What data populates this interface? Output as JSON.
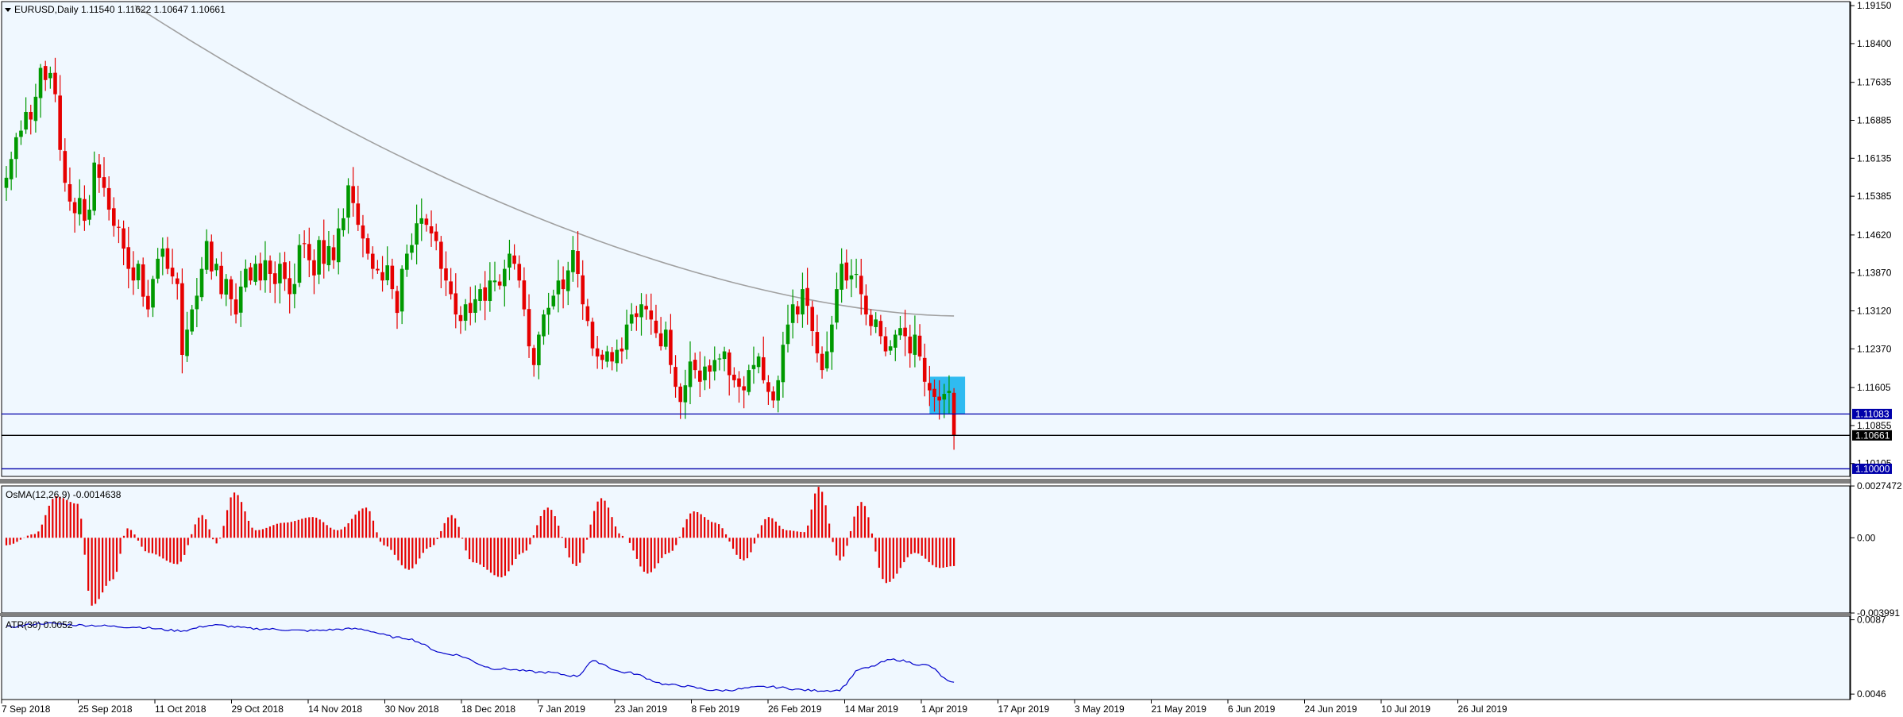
{
  "header": {
    "symbol_line": "EURUSD,Daily  1.11540 1.11622 1.10647 1.10661"
  },
  "colors": {
    "background": "#f0f8ff",
    "bull": "#009900",
    "bear": "#e60000",
    "ma": "#a0a0a0",
    "hline": "#0000aa",
    "highlight": "#1ab4f0",
    "osma": "#e60000",
    "atr": "#0000cc"
  },
  "chart_data": [
    {
      "type": "candlestick",
      "name": "EURUSD,Daily",
      "ylim": [
        1.0985,
        1.1923
      ],
      "y_ticks": [
        "1.19150",
        "1.18400",
        "1.17635",
        "1.16885",
        "1.16135",
        "1.15385",
        "1.14620",
        "1.13870",
        "1.13120",
        "1.12370",
        "1.11605",
        "1.10855",
        "1.10105"
      ],
      "x_ticks": [
        "7 Sep 2018",
        "25 Sep 2018",
        "11 Oct 2018",
        "29 Oct 2018",
        "14 Nov 2018",
        "30 Nov 2018",
        "18 Dec 2018",
        "7 Jan 2019",
        "23 Jan 2019",
        "8 Feb 2019",
        "26 Feb 2019",
        "14 Mar 2019",
        "1 Apr 2019",
        "17 Apr 2019",
        "3 May 2019",
        "21 May 2019",
        "6 Jun 2019",
        "24 Jun 2019",
        "10 Jul 2019",
        "26 Jul 2019"
      ],
      "close_path": [
        1.1575,
        1.1612,
        1.1655,
        1.1668,
        1.1705,
        1.169,
        1.1735,
        1.1792,
        1.1768,
        1.1782,
        1.174,
        1.163,
        1.1565,
        1.1528,
        1.1505,
        1.1535,
        1.149,
        1.1512,
        1.1605,
        1.1575,
        1.1555,
        1.1512,
        1.148,
        1.1478,
        1.1435,
        1.1395,
        1.1372,
        1.1405,
        1.134,
        1.1315,
        1.1375,
        1.1415,
        1.1435,
        1.1395,
        1.138,
        1.1365,
        1.1225,
        1.1275,
        1.1315,
        1.1342,
        1.1395,
        1.145,
        1.139,
        1.1405,
        1.1345,
        1.1375,
        1.1335,
        1.1305,
        1.136,
        1.1395,
        1.1372,
        1.1405,
        1.1372,
        1.1412,
        1.1385,
        1.1365,
        1.1405,
        1.1375,
        1.1345,
        1.1365,
        1.1442,
        1.1445,
        1.1412,
        1.1382,
        1.1452,
        1.1405,
        1.144,
        1.1412,
        1.1475,
        1.1495,
        1.156,
        1.1525,
        1.1482,
        1.1455,
        1.1425,
        1.1395,
        1.1392,
        1.1372,
        1.1402,
        1.1355,
        1.1308,
        1.1395,
        1.1425,
        1.1442,
        1.1485,
        1.1495,
        1.1482,
        1.1465,
        1.145,
        1.1395,
        1.1372,
        1.1345,
        1.1305,
        1.1292,
        1.1325,
        1.1308,
        1.1335,
        1.1355,
        1.1332,
        1.1372,
        1.1372,
        1.1362,
        1.1395,
        1.1425,
        1.1405,
        1.1372,
        1.1315,
        1.1242,
        1.1205,
        1.1265,
        1.1305,
        1.1318,
        1.1342,
        1.1372,
        1.1355,
        1.1392,
        1.1432,
        1.1385,
        1.1325,
        1.1292,
        1.1238,
        1.1222,
        1.1215,
        1.1232,
        1.1212,
        1.1235,
        1.1232,
        1.1285,
        1.1305,
        1.13,
        1.1325,
        1.1315,
        1.1295,
        1.1268,
        1.1242,
        1.1275,
        1.1205,
        1.1162,
        1.1132,
        1.1165,
        1.1212,
        1.1195,
        1.1172,
        1.1202,
        1.1192,
        1.1215,
        1.1218,
        1.1232,
        1.1185,
        1.1175,
        1.1162,
        1.1155,
        1.1195,
        1.1205,
        1.1222,
        1.1175,
        1.1152,
        1.1135,
        1.1175,
        1.1245,
        1.1285,
        1.1325,
        1.1305,
        1.1355,
        1.1322,
        1.1272,
        1.1228,
        1.1195,
        1.1232,
        1.1285,
        1.1355,
        1.1405,
        1.1372,
        1.1382,
        1.1385,
        1.1345,
        1.1305,
        1.1282,
        1.1295,
        1.1262,
        1.1232,
        1.1242,
        1.1265,
        1.1278,
        1.1262,
        1.1228,
        1.1265,
        1.1222,
        1.1172,
        1.1155,
        1.1142,
        1.1135,
        1.1148,
        1.1154,
        1.1066
      ],
      "moving_average": {
        "start": 1.1915,
        "end": 1.1302
      },
      "horizontal_lines": [
        1.11083,
        1.10661,
        1.1
      ],
      "price_tags": [
        {
          "label": "1.11083",
          "value": 1.11083,
          "bg": "#0000aa",
          "fg": "#ffffff"
        },
        {
          "label": "1.10661",
          "value": 1.10661,
          "bg": "#000000",
          "fg": "#ffffff"
        },
        {
          "label": "1.10000",
          "value": 1.1,
          "bg": "#0000aa",
          "fg": "#ffffff"
        }
      ],
      "highlight_box": {
        "y_range": [
          1.1108,
          1.1182
        ]
      }
    },
    {
      "type": "bar",
      "name": "OsMA(12,26,9)",
      "header": "OsMA(12,26,9) -0.0014638",
      "last_value": -0.0014638,
      "ylim": [
        -0.00399,
        0.00275
      ],
      "y_ticks": [
        "0.0027472",
        "0.00",
        "-0.003991"
      ],
      "shape_segments": [
        [
          0,
          -0.0004
        ],
        [
          8,
          0.0002
        ],
        [
          14,
          0.0022
        ],
        [
          20,
          0.0018
        ],
        [
          24,
          -0.0036
        ],
        [
          30,
          -0.0022
        ],
        [
          34,
          0.0005
        ],
        [
          40,
          -0.0008
        ],
        [
          48,
          -0.0014
        ],
        [
          55,
          0.0012
        ],
        [
          59,
          -0.0003
        ],
        [
          64,
          0.0024
        ],
        [
          70,
          0.0004
        ],
        [
          78,
          0.0008
        ],
        [
          86,
          0.0011
        ],
        [
          93,
          0.0004
        ],
        [
          101,
          0.0016
        ],
        [
          106,
          -0.0004
        ],
        [
          113,
          -0.0017
        ],
        [
          119,
          -0.0005
        ],
        [
          125,
          0.0012
        ],
        [
          131,
          -0.0013
        ],
        [
          139,
          -0.0021
        ],
        [
          145,
          -0.0008
        ],
        [
          152,
          0.0016
        ],
        [
          160,
          -0.0015
        ],
        [
          167,
          0.0021
        ],
        [
          173,
          0.0001
        ],
        [
          180,
          -0.0019
        ],
        [
          186,
          -0.0008
        ],
        [
          193,
          0.0014
        ],
        [
          199,
          0.0008
        ],
        [
          207,
          -0.0012
        ],
        [
          214,
          0.0011
        ],
        [
          219,
          0.0004
        ],
        [
          224,
          0.0003
        ],
        [
          228,
          0.0027
        ],
        [
          234,
          -0.0012
        ],
        [
          240,
          0.0019
        ],
        [
          247,
          -0.0024
        ],
        [
          255,
          -0.0008
        ],
        [
          262,
          -0.0016
        ],
        [
          266,
          -0.0015
        ]
      ]
    },
    {
      "type": "line",
      "name": "ATR(30)",
      "header": "ATR(30) 0.0052",
      "last_value": 0.0052,
      "ylim": [
        0.0043,
        0.0089
      ],
      "y_ticks": [
        "0.0087",
        "0.0046"
      ],
      "shape_segments": [
        [
          0,
          0.0083
        ],
        [
          12,
          0.0085
        ],
        [
          25,
          0.0084
        ],
        [
          40,
          0.0083
        ],
        [
          55,
          0.0081
        ],
        [
          65,
          0.0084
        ],
        [
          80,
          0.0082
        ],
        [
          95,
          0.0081
        ],
        [
          110,
          0.0082
        ],
        [
          125,
          0.0077
        ],
        [
          140,
          0.0068
        ],
        [
          155,
          0.006
        ],
        [
          170,
          0.0058
        ],
        [
          180,
          0.0056
        ],
        [
          185,
          0.0064
        ],
        [
          195,
          0.0058
        ],
        [
          210,
          0.0051
        ],
        [
          225,
          0.0048
        ],
        [
          240,
          0.005
        ],
        [
          255,
          0.0048
        ],
        [
          262,
          0.0048
        ],
        [
          270,
          0.006
        ],
        [
          280,
          0.0065
        ],
        [
          290,
          0.0062
        ],
        [
          299,
          0.0052
        ]
      ]
    }
  ]
}
